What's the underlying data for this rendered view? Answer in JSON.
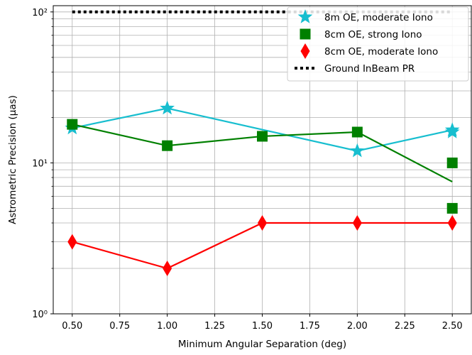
{
  "chart_data": {
    "type": "line",
    "xlabel": "Minimum Angular Separation (deg)",
    "ylabel": "Astrometric Precision (μas)",
    "yscale": "log",
    "xlim": [
      0.4,
      2.6
    ],
    "ylim": [
      1,
      110
    ],
    "xticks": [
      "0.50",
      "0.75",
      "1.00",
      "1.25",
      "1.50",
      "1.75",
      "2.00",
      "2.25",
      "2.50"
    ],
    "yticks": [
      {
        "value": 1,
        "label": "10⁰"
      },
      {
        "value": 10,
        "label": "10¹"
      },
      {
        "value": 100,
        "label": "10²"
      }
    ],
    "grid": true,
    "legend_position": "top-right",
    "series": [
      {
        "name": "8m OE, moderate Iono",
        "color": "#17becf",
        "marker": "star",
        "line": "solid",
        "points": [
          [
            0.5,
            17
          ],
          [
            1.0,
            23
          ],
          [
            2.0,
            12
          ],
          [
            2.5,
            16.5
          ]
        ],
        "extra_points": [
          [
            2.5,
            16
          ]
        ]
      },
      {
        "name": "8cm OE, strong Iono",
        "color": "#008000",
        "marker": "square",
        "line": "solid",
        "points": [
          [
            0.5,
            18
          ],
          [
            1.0,
            13
          ],
          [
            1.5,
            15
          ],
          [
            2.0,
            16
          ],
          [
            2.5,
            7.5
          ]
        ],
        "extra_points": [
          [
            0.5,
            18
          ],
          [
            1.0,
            13
          ],
          [
            1.5,
            15
          ],
          [
            2.0,
            16
          ],
          [
            2.5,
            10
          ],
          [
            2.5,
            5
          ]
        ]
      },
      {
        "name": "8cm OE, moderate Iono",
        "color": "#ff0000",
        "marker": "diamond",
        "line": "solid",
        "points": [
          [
            0.5,
            3
          ],
          [
            1.0,
            2
          ],
          [
            1.5,
            4
          ],
          [
            2.0,
            4
          ],
          [
            2.5,
            4
          ]
        ],
        "extra_points": [
          [
            0.5,
            3
          ],
          [
            1.0,
            2
          ],
          [
            1.5,
            4
          ],
          [
            2.0,
            4
          ],
          [
            2.5,
            4
          ]
        ]
      },
      {
        "name": "Ground InBeam PR",
        "color": "#000000",
        "marker": "none",
        "line": "dotted",
        "points": [
          [
            0.5,
            100
          ],
          [
            2.5,
            100
          ]
        ],
        "extra_points": []
      }
    ]
  }
}
